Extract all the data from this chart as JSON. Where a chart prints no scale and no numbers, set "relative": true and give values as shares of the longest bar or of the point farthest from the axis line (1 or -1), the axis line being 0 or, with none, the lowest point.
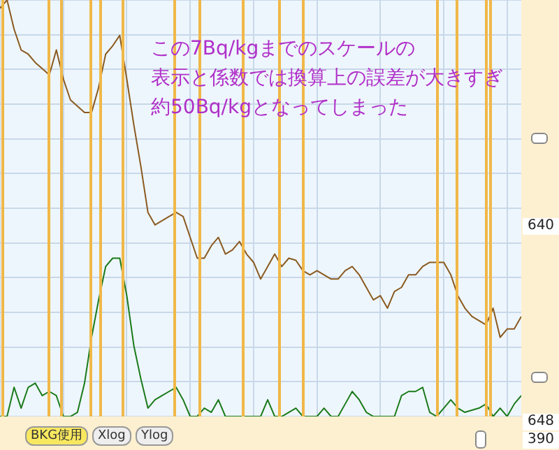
{
  "chart_data": {
    "type": "line",
    "relative": true,
    "tick_labels": false,
    "grid": true,
    "legend": false,
    "marker": "none",
    "annotations": [
      "この7Bq/kgまでのスケールの",
      "表示と係数では換算上の誤差が大きすぎ",
      "約50Bq/kgとなってしまった",
      "BKG使用",
      "Xlog",
      "Ylog",
      "640",
      "648",
      "390"
    ],
    "categories": [
      null,
      null,
      null,
      null,
      null,
      null,
      null,
      null,
      null,
      null,
      null,
      null,
      null,
      null,
      null,
      null,
      null,
      null,
      null,
      null,
      null,
      null,
      null,
      null,
      null,
      null,
      null,
      null,
      null,
      null,
      null,
      null,
      null,
      null,
      null,
      null,
      null,
      null,
      null,
      null,
      null,
      null,
      null,
      null,
      null,
      null,
      null,
      null,
      null,
      null,
      null,
      null,
      null,
      null,
      null,
      null,
      null,
      null,
      null,
      null,
      null,
      null,
      null,
      null,
      null,
      null,
      null,
      null,
      null,
      null,
      null,
      null,
      null,
      null,
      null
    ],
    "series": [
      {
        "color": "#8a5a20",
        "values": [
          0.98,
          1,
          0.93,
          0.88,
          0.87,
          0.85,
          0.835,
          0.82,
          0.88,
          0.81,
          0.76,
          0.745,
          0.73,
          0.73,
          0.79,
          0.87,
          0.89,
          0.915,
          0.81,
          0.7,
          0.6,
          0.49,
          0.46,
          0.47,
          0.48,
          0.49,
          0.48,
          0.43,
          0.38,
          0.38,
          0.41,
          0.43,
          0.39,
          0.4,
          0.42,
          0.39,
          0.37,
          0.33,
          0.36,
          0.39,
          0.36,
          0.38,
          0.375,
          0.35,
          0.34,
          0.35,
          0.34,
          0.33,
          0.33,
          0.35,
          0.36,
          0.34,
          0.31,
          0.28,
          0.29,
          0.26,
          0.3,
          0.31,
          0.34,
          0.34,
          0.36,
          0.37,
          0.37,
          0.37,
          0.34,
          0.29,
          0.26,
          0.24,
          0.23,
          0.22,
          0.26,
          0.19,
          0.21,
          0.21,
          0.24
        ]
      },
      {
        "color": "#1a7a1a",
        "values": [
          0,
          0,
          0.07,
          0.02,
          0.07,
          0.08,
          0.05,
          0.06,
          0.05,
          0,
          0,
          0.01,
          0.08,
          0.19,
          0.28,
          0.36,
          0.38,
          0.38,
          0.29,
          0.17,
          0.09,
          0.02,
          0.04,
          0.05,
          0.06,
          0.07,
          0.04,
          0,
          0,
          0.02,
          0.01,
          0.04,
          0,
          0,
          0,
          0,
          0,
          0,
          0.04,
          0,
          0,
          0.01,
          0.02,
          0,
          0,
          0,
          0.02,
          0,
          0,
          0.03,
          0.06,
          0.04,
          0.01,
          0,
          0,
          0,
          0,
          0.05,
          0.06,
          0.06,
          0.07,
          0.01,
          0,
          0.02,
          0.04,
          0.02,
          0.01,
          0.015,
          0.02,
          0.03,
          0,
          0.02,
          0,
          0.03,
          0.05
        ]
      }
    ]
  }
}
